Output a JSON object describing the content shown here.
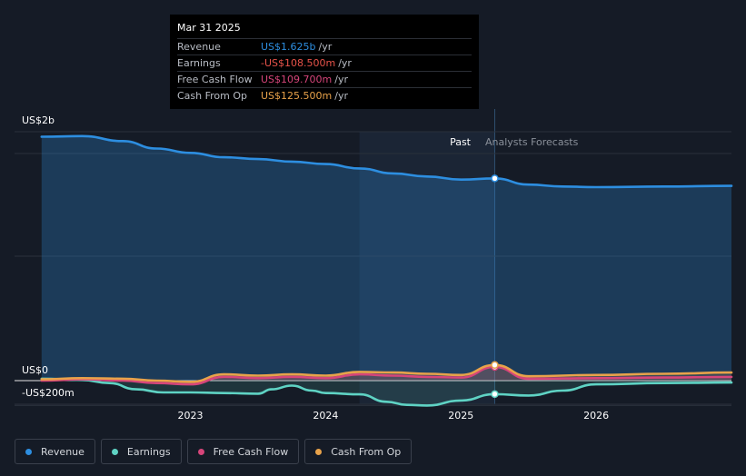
{
  "chart_data": {
    "type": "line",
    "title": "",
    "y_axis": {
      "top_label": "US$2b",
      "zero_label": "US$0",
      "bottom_label": "-US$200m",
      "ylim": [
        -200,
        2200
      ],
      "unit": "US$m"
    },
    "x_ticks": [
      {
        "label": "2023",
        "value": 2023.0
      },
      {
        "label": "2024",
        "value": 2024.0
      },
      {
        "label": "2025",
        "value": 2025.0
      },
      {
        "label": "2026",
        "value": 2026.0
      }
    ],
    "xlim": [
      2021.7,
      2027.0
    ],
    "past_label": "Past",
    "forecast_label": "Analysts Forecasts",
    "past_shade_start": 2024.25,
    "divider_x": 2025.25,
    "series": [
      {
        "name": "Revenue",
        "color": "#2d8ee0",
        "points": [
          [
            2021.9,
            1960
          ],
          [
            2022.2,
            1965
          ],
          [
            2022.5,
            1925
          ],
          [
            2022.75,
            1865
          ],
          [
            2023.0,
            1830
          ],
          [
            2023.25,
            1795
          ],
          [
            2023.5,
            1780
          ],
          [
            2023.75,
            1760
          ],
          [
            2024.0,
            1740
          ],
          [
            2024.25,
            1705
          ],
          [
            2024.5,
            1665
          ],
          [
            2024.75,
            1640
          ],
          [
            2025.0,
            1615
          ],
          [
            2025.25,
            1625
          ],
          [
            2025.5,
            1575
          ],
          [
            2025.75,
            1560
          ],
          [
            2026.0,
            1555
          ],
          [
            2026.5,
            1560
          ],
          [
            2027.0,
            1565
          ]
        ]
      },
      {
        "name": "Earnings",
        "color": "#5fd3c4",
        "points": [
          [
            2021.9,
            15
          ],
          [
            2022.2,
            5
          ],
          [
            2022.4,
            -20
          ],
          [
            2022.6,
            -70
          ],
          [
            2022.8,
            -95
          ],
          [
            2023.0,
            -95
          ],
          [
            2023.25,
            -100
          ],
          [
            2023.5,
            -105
          ],
          [
            2023.6,
            -70
          ],
          [
            2023.75,
            -40
          ],
          [
            2023.9,
            -80
          ],
          [
            2024.0,
            -100
          ],
          [
            2024.25,
            -110
          ],
          [
            2024.45,
            -170
          ],
          [
            2024.6,
            -195
          ],
          [
            2024.75,
            -200
          ],
          [
            2025.0,
            -160
          ],
          [
            2025.25,
            -108.5
          ],
          [
            2025.5,
            -120
          ],
          [
            2025.75,
            -80
          ],
          [
            2026.0,
            -30
          ],
          [
            2026.5,
            -20
          ],
          [
            2027.0,
            -15
          ]
        ]
      },
      {
        "name": "Free Cash Flow",
        "color": "#d6457a",
        "points": [
          [
            2021.9,
            0
          ],
          [
            2022.2,
            10
          ],
          [
            2022.5,
            0
          ],
          [
            2022.75,
            -20
          ],
          [
            2023.0,
            -30
          ],
          [
            2023.25,
            30
          ],
          [
            2023.5,
            20
          ],
          [
            2023.75,
            30
          ],
          [
            2024.0,
            20
          ],
          [
            2024.25,
            50
          ],
          [
            2024.5,
            40
          ],
          [
            2024.75,
            30
          ],
          [
            2025.0,
            25
          ],
          [
            2025.25,
            109.7
          ],
          [
            2025.5,
            15
          ],
          [
            2026.0,
            20
          ],
          [
            2026.5,
            25
          ],
          [
            2027.0,
            30
          ]
        ]
      },
      {
        "name": "Cash From Op",
        "color": "#e8a24a",
        "points": [
          [
            2021.9,
            10
          ],
          [
            2022.2,
            20
          ],
          [
            2022.5,
            15
          ],
          [
            2022.75,
            0
          ],
          [
            2023.0,
            -10
          ],
          [
            2023.25,
            50
          ],
          [
            2023.5,
            40
          ],
          [
            2023.75,
            50
          ],
          [
            2024.0,
            40
          ],
          [
            2024.25,
            70
          ],
          [
            2024.5,
            65
          ],
          [
            2024.75,
            55
          ],
          [
            2025.0,
            45
          ],
          [
            2025.25,
            125.5
          ],
          [
            2025.5,
            35
          ],
          [
            2026.0,
            45
          ],
          [
            2026.5,
            55
          ],
          [
            2027.0,
            65
          ]
        ]
      }
    ],
    "tooltip": {
      "date": "Mar 31 2025",
      "rows": [
        {
          "label": "Revenue",
          "value": "US$1.625b",
          "unit": "/yr",
          "color": "#2d8ee0"
        },
        {
          "label": "Earnings",
          "value": "-US$108.500m",
          "unit": "/yr",
          "color": "#e8534a"
        },
        {
          "label": "Free Cash Flow",
          "value": "US$109.700m",
          "unit": "/yr",
          "color": "#d6457a"
        },
        {
          "label": "Cash From Op",
          "value": "US$125.500m",
          "unit": "/yr",
          "color": "#e8a24a"
        }
      ]
    },
    "legend": [
      {
        "label": "Revenue",
        "color": "#2d8ee0"
      },
      {
        "label": "Earnings",
        "color": "#5fd3c4"
      },
      {
        "label": "Free Cash Flow",
        "color": "#d6457a"
      },
      {
        "label": "Cash From Op",
        "color": "#e8a24a"
      }
    ]
  }
}
